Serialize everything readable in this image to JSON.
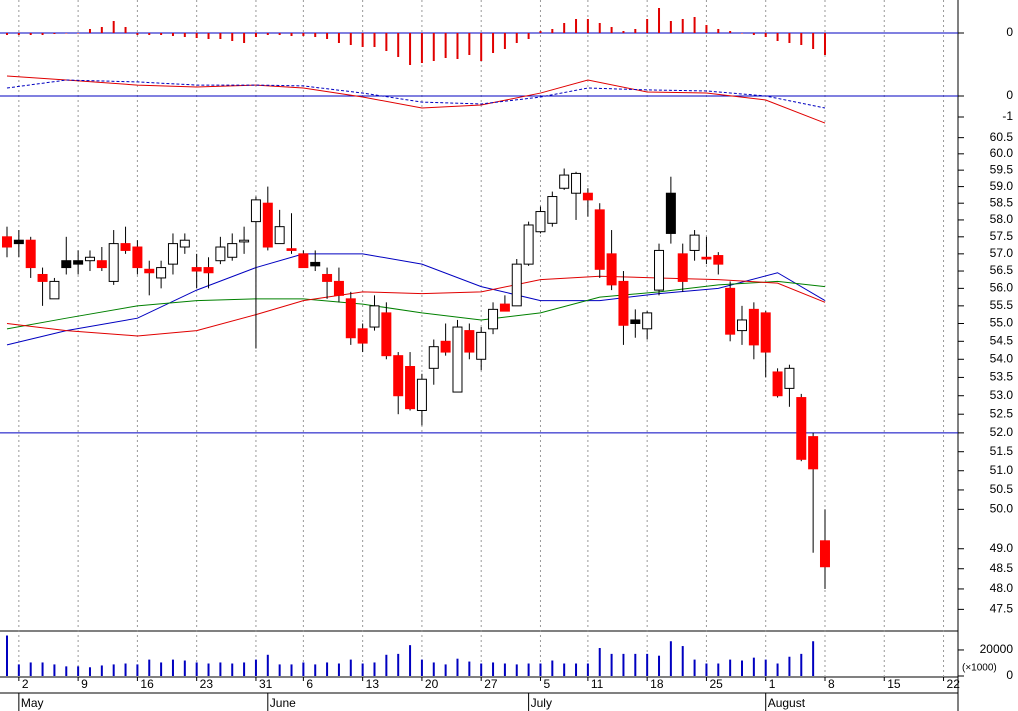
{
  "chart_data": [
    {
      "type": "bar",
      "color": "#e00000",
      "ylim": [
        -1.65,
        1.65
      ],
      "yticks": [
        0
      ],
      "zero_line_color": "#0000c0",
      "values": [
        -0.1,
        -0.1,
        -0.1,
        -0.1,
        -0.05,
        0,
        0,
        0.2,
        0.3,
        0.6,
        0.3,
        -0.1,
        -0.1,
        -0.1,
        -0.15,
        -0.2,
        -0.25,
        -0.3,
        -0.3,
        -0.4,
        -0.5,
        -0.2,
        -0.1,
        -0.1,
        -0.15,
        -0.15,
        -0.2,
        -0.3,
        -0.5,
        -0.6,
        -0.7,
        -0.7,
        -0.9,
        -1.2,
        -1.6,
        -1.5,
        -1.4,
        -1.25,
        -1.3,
        -1.1,
        -1.4,
        -1.0,
        -0.8,
        -0.5,
        -0.3,
        0.1,
        0.2,
        0.5,
        0.7,
        0.7,
        0.5,
        0.3,
        0.1,
        0.2,
        0.7,
        1.25,
        0.6,
        0.7,
        0.8,
        0.4,
        0.2,
        0.1,
        0,
        -0.1,
        -0.2,
        -0.4,
        -0.5,
        -0.6,
        -0.8,
        -1.1
      ]
    },
    {
      "type": "line",
      "ylim": [
        -1.524,
        1.714
      ],
      "yticks": [
        0,
        -1
      ],
      "zero_line_color": "#0000c0",
      "series": [
        {
          "color": "#e00000",
          "dashed": false,
          "x": [
            0,
            5,
            11,
            16,
            21,
            25,
            30,
            35,
            40,
            45,
            49,
            54,
            59,
            64,
            69
          ],
          "values": [
            0.95,
            0.76,
            0.52,
            0.43,
            0.52,
            0.38,
            -0.05,
            -0.57,
            -0.43,
            0.14,
            0.76,
            0.19,
            0.14,
            -0.19,
            -1.29
          ]
        },
        {
          "color": "#0000c0",
          "dashed": true,
          "x": [
            0,
            5,
            11,
            16,
            21,
            25,
            30,
            35,
            40,
            45,
            49,
            54,
            59,
            64,
            69
          ],
          "values": [
            0.38,
            0.76,
            0.67,
            0.52,
            0.52,
            0.48,
            0.14,
            -0.29,
            -0.38,
            -0.05,
            0.38,
            0.29,
            0.24,
            0,
            -0.57
          ]
        }
      ]
    },
    {
      "type": "candlestick",
      "log_scale": true,
      "ylim": [
        47.0,
        60.8
      ],
      "hline": 52,
      "hline_color": "#0000c0",
      "colors": {
        "up": "#ffffff",
        "down": "#ff0000",
        "down_above_prev_close": "#000000",
        "outline": "#000000"
      },
      "yticks": [
        47.5,
        {
          "value": 48,
          "label": "48.0"
        },
        48.5,
        {
          "value": 49,
          "label": "49.0"
        },
        {
          "value": 50,
          "label": "50.0"
        },
        50.5,
        {
          "value": 51,
          "label": "51.0"
        },
        51.5,
        {
          "value": 52,
          "label": "52.0"
        },
        52.5,
        {
          "value": 53,
          "label": "53.0"
        },
        53.5,
        {
          "value": 54,
          "label": "54.0"
        },
        54.5,
        {
          "value": 55,
          "label": "55.0"
        },
        55.5,
        {
          "value": 56,
          "label": "56.0"
        },
        56.5,
        {
          "value": 57,
          "label": "57.0"
        },
        57.5,
        {
          "value": 58,
          "label": "58.0"
        },
        58.5,
        {
          "value": 59,
          "label": "59.0"
        },
        59.5,
        {
          "value": 60,
          "label": "60.0"
        },
        60.5
      ],
      "open": [
        57.5,
        57.4,
        57.4,
        56.4,
        55.7,
        56.8,
        56.8,
        56.8,
        56.8,
        56.2,
        57.3,
        57.2,
        56.55,
        56.3,
        56.7,
        57.2,
        56.6,
        56.6,
        56.8,
        56.9,
        57.35,
        57.95,
        58.5,
        57.3,
        57.15,
        57.0,
        56.75,
        56.4,
        56.2,
        55.7,
        54.85,
        54.9,
        55.3,
        54.1,
        53.8,
        52.6,
        53.75,
        54.5,
        53.1,
        54.8,
        54.0,
        54.85,
        55.55,
        55.5,
        56.7,
        57.65,
        57.9,
        58.95,
        58.8,
        58.8,
        58.3,
        57.0,
        56.2,
        55.1,
        54.85,
        55.95,
        58.8,
        57.0,
        57.1,
        56.9,
        56.95,
        56.0,
        54.8,
        55.4,
        55.3,
        53.65,
        53.2,
        52.95,
        51.9,
        49.2
      ],
      "high": [
        57.8,
        57.7,
        57.5,
        56.6,
        56.3,
        57.5,
        57.1,
        57.1,
        57.2,
        57.7,
        57.8,
        57.4,
        56.8,
        56.8,
        57.6,
        57.6,
        57.0,
        56.9,
        57.5,
        57.6,
        57.8,
        58.7,
        59.0,
        58.3,
        58.2,
        57.1,
        57.1,
        56.6,
        56.6,
        55.9,
        55.0,
        55.8,
        55.6,
        54.2,
        54.2,
        53.6,
        54.55,
        55.0,
        55.1,
        55.0,
        54.9,
        55.6,
        55.8,
        56.85,
        57.95,
        58.4,
        58.85,
        59.55,
        59.45,
        58.95,
        58.5,
        57.7,
        56.5,
        55.4,
        55.35,
        57.3,
        59.3,
        57.3,
        57.7,
        57.5,
        57.05,
        56.2,
        55.5,
        55.6,
        55.35,
        53.75,
        53.85,
        53.05,
        52.0,
        50.0
      ],
      "low": [
        56.9,
        56.9,
        56.3,
        55.5,
        55.7,
        56.4,
        56.4,
        56.5,
        56.5,
        56.1,
        57.0,
        56.4,
        55.8,
        56.0,
        56.4,
        57.0,
        56.0,
        56.0,
        56.7,
        56.8,
        57.0,
        54.3,
        57.1,
        57.3,
        57.0,
        56.6,
        56.5,
        55.7,
        55.6,
        54.4,
        54.2,
        54.8,
        54.0,
        52.5,
        52.6,
        52.2,
        53.3,
        54.1,
        53.1,
        54.0,
        53.7,
        54.7,
        55.35,
        55.5,
        56.65,
        57.6,
        57.8,
        58.9,
        58.0,
        58.1,
        56.3,
        55.95,
        54.4,
        54.6,
        54.55,
        55.8,
        57.3,
        55.9,
        56.8,
        56.7,
        56.4,
        54.5,
        54.4,
        54.0,
        53.5,
        52.95,
        52.7,
        51.25,
        48.9,
        48.0
      ],
      "close": [
        57.2,
        57.3,
        56.6,
        56.2,
        56.2,
        56.6,
        56.7,
        56.9,
        56.6,
        57.3,
        57.1,
        56.6,
        56.45,
        56.6,
        57.3,
        57.4,
        56.5,
        56.45,
        57.2,
        57.3,
        57.4,
        58.6,
        57.2,
        57.8,
        57.1,
        56.6,
        56.65,
        56.2,
        55.8,
        54.6,
        54.45,
        55.5,
        54.1,
        53.0,
        52.65,
        53.45,
        54.35,
        54.2,
        54.9,
        54.2,
        54.75,
        55.4,
        55.35,
        56.7,
        57.85,
        58.25,
        58.7,
        59.35,
        59.4,
        58.6,
        56.55,
        56.1,
        54.95,
        55.0,
        55.3,
        57.1,
        57.6,
        56.2,
        57.55,
        56.85,
        56.7,
        54.7,
        55.1,
        54.4,
        54.2,
        53.0,
        53.75,
        51.3,
        51.05,
        48.55
      ],
      "series": [
        {
          "color": "#0000c0",
          "x": [
            0,
            5,
            11,
            16,
            21,
            25,
            30,
            35,
            40,
            45,
            50,
            55,
            60,
            65,
            69
          ],
          "values": [
            54.4,
            54.8,
            55.15,
            55.95,
            56.6,
            57.0,
            57.0,
            56.7,
            56.05,
            55.65,
            55.65,
            55.85,
            56.0,
            56.45,
            55.65
          ]
        },
        {
          "color": "#008000",
          "x": [
            0,
            5,
            11,
            16,
            21,
            25,
            30,
            35,
            40,
            45,
            50,
            55,
            60,
            65,
            69
          ],
          "values": [
            54.85,
            55.15,
            55.5,
            55.65,
            55.7,
            55.7,
            55.55,
            55.3,
            55.1,
            55.3,
            55.75,
            55.9,
            56.1,
            56.2,
            56.05
          ]
        },
        {
          "color": "#e00000",
          "x": [
            0,
            5,
            11,
            16,
            21,
            25,
            30,
            35,
            40,
            45,
            50,
            55,
            60,
            65,
            69
          ],
          "values": [
            55.0,
            54.8,
            54.65,
            54.8,
            55.25,
            55.65,
            55.9,
            55.85,
            55.9,
            56.25,
            56.35,
            56.3,
            56.25,
            56.15,
            55.6
          ]
        }
      ]
    },
    {
      "type": "bar",
      "color": "#0000c0",
      "ylim": [
        0,
        33800
      ],
      "yticks": [
        0,
        20000
      ],
      "unit_label": "(×1000)",
      "values": [
        31100,
        8900,
        10400,
        10400,
        8900,
        7400,
        7400,
        6700,
        8100,
        8900,
        9600,
        8900,
        12600,
        10400,
        12600,
        11900,
        10400,
        9600,
        10400,
        9600,
        10400,
        12600,
        16300,
        8900,
        8900,
        10400,
        8900,
        10400,
        9600,
        12600,
        9600,
        10400,
        16300,
        17000,
        23700,
        12600,
        10400,
        8900,
        13300,
        11100,
        9600,
        10400,
        9600,
        8900,
        9600,
        9600,
        11900,
        9600,
        9600,
        9600,
        21500,
        17000,
        17000,
        17000,
        17000,
        15600,
        26700,
        23000,
        12600,
        9600,
        9600,
        12600,
        11900,
        14100,
        12600,
        9600,
        14800,
        17000,
        26700,
        null
      ],
      "xlim": [
        -0.59,
        80.22
      ],
      "grid": true,
      "xticks": [
        {
          "value": 1,
          "label": "2"
        },
        {
          "value": 6,
          "label": "9"
        },
        {
          "value": 11,
          "label": "16"
        },
        {
          "value": 16,
          "label": "23"
        },
        {
          "value": 21,
          "label": "31"
        },
        {
          "value": 25,
          "label": "6"
        },
        {
          "value": 30,
          "label": "13"
        },
        {
          "value": 35,
          "label": "20"
        },
        {
          "value": 40,
          "label": "27"
        },
        {
          "value": 45,
          "label": "5"
        },
        {
          "value": 49,
          "label": "11"
        },
        {
          "value": 54,
          "label": "18"
        },
        {
          "value": 59,
          "label": "25"
        },
        {
          "value": 64,
          "label": "1"
        },
        {
          "value": 69,
          "label": "8"
        },
        {
          "value": 74,
          "label": "15"
        },
        {
          "value": 79,
          "label": "22"
        }
      ],
      "months": [
        {
          "value": 1,
          "label": "May"
        },
        {
          "value": 22,
          "label": "June"
        },
        {
          "value": 44,
          "label": "July"
        },
        {
          "value": 64,
          "label": "August"
        }
      ]
    }
  ]
}
